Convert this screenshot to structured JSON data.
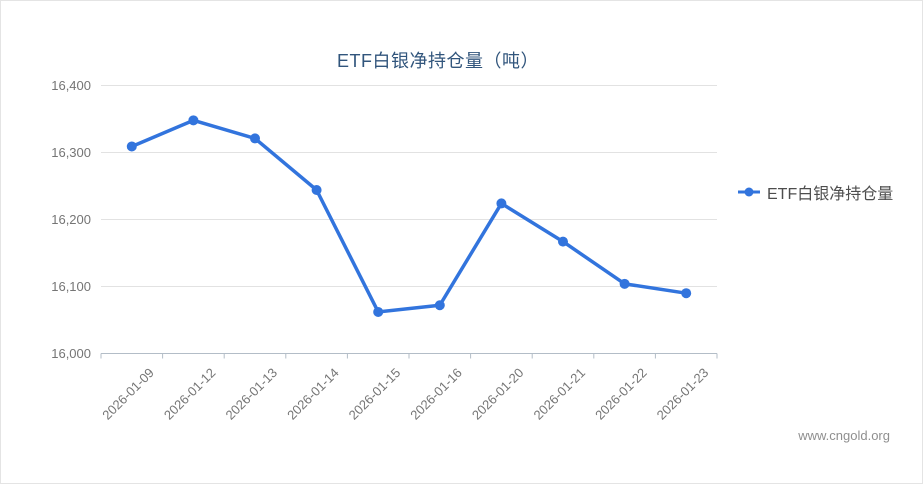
{
  "chart": {
    "title": "ETF白银净持仓量（吨）",
    "legend": {
      "label": "ETF白银净持仓量"
    },
    "watermark": "www.cngold.org",
    "colors": {
      "line": "#3274dd",
      "title": "#31557c",
      "axis_label": "#757575",
      "legend_text": "#4d4d4d",
      "gridline": "#e2e2e2",
      "axis_line": "#b3bdc7",
      "watermark": "#8f8f8f",
      "border": "#e4e4e4"
    }
  },
  "chart_data": {
    "type": "line",
    "title": "ETF白银净持仓量（吨）",
    "categories": [
      "2026-01-09",
      "2026-01-12",
      "2026-01-13",
      "2026-01-14",
      "2026-01-15",
      "2026-01-16",
      "2026-01-20",
      "2026-01-21",
      "2026-01-22",
      "2026-01-23"
    ],
    "series": [
      {
        "name": "ETF白银净持仓量",
        "values": [
          16309,
          16348,
          16321,
          16244,
          16062,
          16072,
          16224,
          16167,
          16104,
          16090
        ]
      }
    ],
    "xlabel": "",
    "ylabel": "",
    "ylim": [
      16000,
      16400
    ],
    "yticks": [
      16000,
      16100,
      16200,
      16300,
      16400
    ],
    "ytick_labels": [
      "16,000",
      "16,100",
      "16,200",
      "16,300",
      "16,400"
    ],
    "grid": true,
    "legend_position": "right",
    "x_label_rotation": -45
  }
}
